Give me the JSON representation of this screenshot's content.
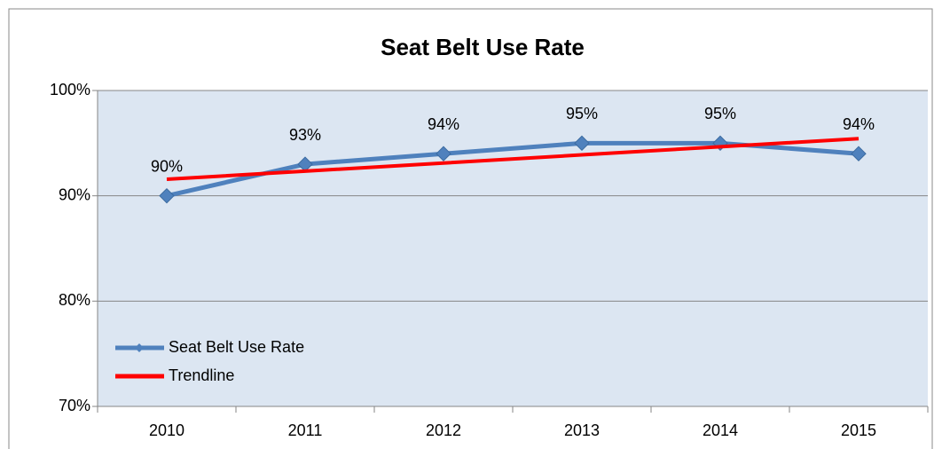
{
  "chart_data": {
    "type": "line",
    "title": "Seat Belt Use Rate",
    "categories": [
      "2010",
      "2011",
      "2012",
      "2013",
      "2014",
      "2015"
    ],
    "series": [
      {
        "name": "Seat Belt Use Rate",
        "color": "#4f81bd",
        "values": [
          90,
          93,
          94,
          95,
          95,
          94
        ],
        "value_labels": [
          "90%",
          "93%",
          "94%",
          "95%",
          "95%",
          "94%"
        ],
        "markers": true
      },
      {
        "name": "Trendline",
        "color": "#ff0000",
        "values": [
          91.57,
          92.34,
          93.11,
          93.89,
          94.66,
          95.43
        ],
        "markers": false
      }
    ],
    "ylim": [
      70,
      100
    ],
    "yticks": [
      {
        "value": 70,
        "label": "70%"
      },
      {
        "value": 80,
        "label": "80%"
      },
      {
        "value": 90,
        "label": "90%"
      },
      {
        "value": 100,
        "label": "100%"
      }
    ],
    "grid": true,
    "legend": "lower left",
    "plot_background": "#dce6f2"
  }
}
